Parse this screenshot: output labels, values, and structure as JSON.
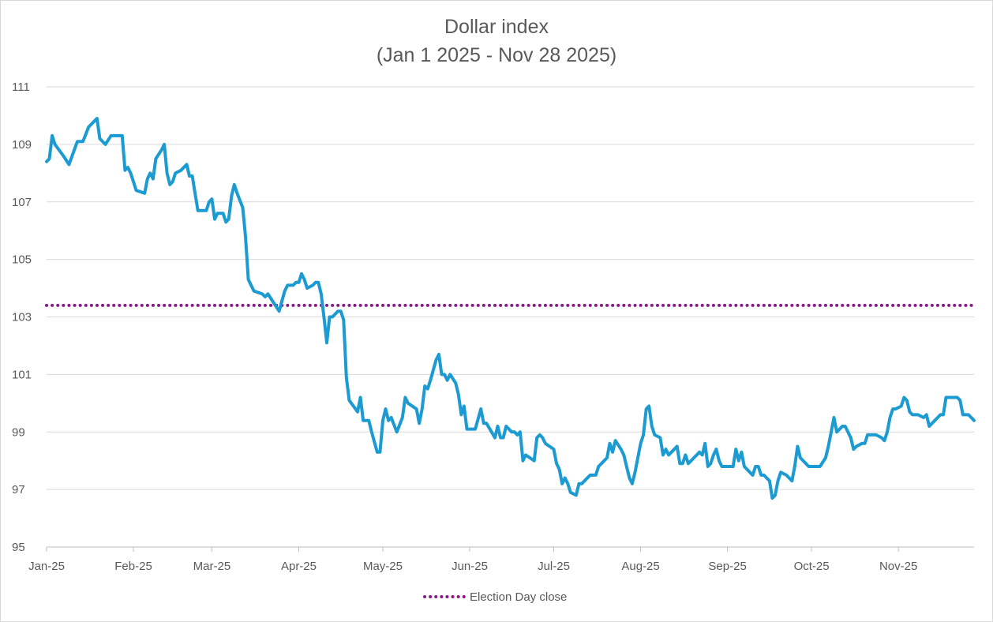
{
  "chart_data": {
    "type": "line",
    "title": "Dollar index",
    "subtitle": "(Jan 1 2025 - Nov 28 2025)",
    "xlabel": "",
    "ylabel": "",
    "x_tick_labels": [
      "Jan-25",
      "Feb-25",
      "Mar-25",
      "Apr-25",
      "May-25",
      "Jun-25",
      "Jul-25",
      "Aug-25",
      "Sep-25",
      "Oct-25",
      "Nov-25"
    ],
    "x_ticks": [
      "2025-01-01",
      "2025-02-01",
      "2025-03-01",
      "2025-04-01",
      "2025-05-01",
      "2025-06-01",
      "2025-07-01",
      "2025-08-01",
      "2025-09-01",
      "2025-10-01",
      "2025-11-01"
    ],
    "xlim": [
      "2025-01-01",
      "2025-11-28"
    ],
    "y_tick_labels": [
      "95",
      "97",
      "99",
      "101",
      "103",
      "105",
      "107",
      "109",
      "111"
    ],
    "ylim": [
      95,
      111
    ],
    "grid": "horizontal",
    "legend_position": "bottom",
    "colors": {
      "series": "#1b9bd1",
      "election": "#8b1a8b",
      "grid": "#d9d9d9",
      "axis": "#bfbfbf",
      "text": "#595959"
    },
    "series": [
      {
        "values": [
          [
            "2025-01-01",
            108.4
          ],
          [
            "2025-01-02",
            108.5
          ],
          [
            "2025-01-03",
            109.3
          ],
          [
            "2025-01-04",
            109.0
          ],
          [
            "2025-01-07",
            108.6
          ],
          [
            "2025-01-09",
            108.3
          ],
          [
            "2025-01-12",
            109.1
          ],
          [
            "2025-01-14",
            109.1
          ],
          [
            "2025-01-16",
            109.6
          ],
          [
            "2025-01-18",
            109.8
          ],
          [
            "2025-01-19",
            109.9
          ],
          [
            "2025-01-20",
            109.2
          ],
          [
            "2025-01-22",
            109.0
          ],
          [
            "2025-01-24",
            109.3
          ],
          [
            "2025-01-26",
            109.3
          ],
          [
            "2025-01-28",
            109.3
          ],
          [
            "2025-01-29",
            108.1
          ],
          [
            "2025-01-30",
            108.2
          ],
          [
            "2025-01-31",
            108.0
          ],
          [
            "2025-02-02",
            107.4
          ],
          [
            "2025-02-05",
            107.3
          ],
          [
            "2025-02-06",
            107.8
          ],
          [
            "2025-02-07",
            108.0
          ],
          [
            "2025-02-08",
            107.8
          ],
          [
            "2025-02-09",
            108.5
          ],
          [
            "2025-02-11",
            108.8
          ],
          [
            "2025-02-12",
            109.0
          ],
          [
            "2025-02-13",
            108.0
          ],
          [
            "2025-02-14",
            107.6
          ],
          [
            "2025-02-15",
            107.7
          ],
          [
            "2025-02-16",
            108.0
          ],
          [
            "2025-02-18",
            108.1
          ],
          [
            "2025-02-20",
            108.3
          ],
          [
            "2025-02-21",
            107.9
          ],
          [
            "2025-02-22",
            107.9
          ],
          [
            "2025-02-23",
            107.3
          ],
          [
            "2025-02-24",
            106.7
          ],
          [
            "2025-02-27",
            106.7
          ],
          [
            "2025-02-28",
            107.0
          ],
          [
            "2025-03-01",
            107.1
          ],
          [
            "2025-03-02",
            106.4
          ],
          [
            "2025-03-03",
            106.6
          ],
          [
            "2025-03-05",
            106.6
          ],
          [
            "2025-03-06",
            106.3
          ],
          [
            "2025-03-07",
            106.4
          ],
          [
            "2025-03-08",
            107.2
          ],
          [
            "2025-03-09",
            107.6
          ],
          [
            "2025-03-10",
            107.3
          ],
          [
            "2025-03-12",
            106.8
          ],
          [
            "2025-03-13",
            105.8
          ],
          [
            "2025-03-14",
            104.3
          ],
          [
            "2025-03-15",
            104.1
          ],
          [
            "2025-03-16",
            103.9
          ],
          [
            "2025-03-19",
            103.8
          ],
          [
            "2025-03-20",
            103.7
          ],
          [
            "2025-03-21",
            103.8
          ],
          [
            "2025-03-23",
            103.5
          ],
          [
            "2025-03-25",
            103.2
          ],
          [
            "2025-03-27",
            103.9
          ],
          [
            "2025-03-28",
            104.1
          ],
          [
            "2025-03-30",
            104.1
          ],
          [
            "2025-03-31",
            104.2
          ],
          [
            "2025-04-01",
            104.2
          ],
          [
            "2025-04-02",
            104.5
          ],
          [
            "2025-04-03",
            104.3
          ],
          [
            "2025-04-04",
            104.0
          ],
          [
            "2025-04-06",
            104.1
          ],
          [
            "2025-04-07",
            104.2
          ],
          [
            "2025-04-08",
            104.2
          ],
          [
            "2025-04-09",
            103.8
          ],
          [
            "2025-04-10",
            103.0
          ],
          [
            "2025-04-11",
            102.1
          ],
          [
            "2025-04-12",
            103.0
          ],
          [
            "2025-04-13",
            103.0
          ],
          [
            "2025-04-15",
            103.2
          ],
          [
            "2025-04-16",
            103.2
          ],
          [
            "2025-04-17",
            102.9
          ],
          [
            "2025-04-18",
            100.9
          ],
          [
            "2025-04-19",
            100.1
          ],
          [
            "2025-04-22",
            99.7
          ],
          [
            "2025-04-23",
            100.2
          ],
          [
            "2025-04-24",
            99.4
          ],
          [
            "2025-04-26",
            99.4
          ],
          [
            "2025-04-27",
            99.0
          ],
          [
            "2025-04-29",
            98.3
          ],
          [
            "2025-04-30",
            98.3
          ],
          [
            "2025-05-01",
            99.4
          ],
          [
            "2025-05-02",
            99.8
          ],
          [
            "2025-05-03",
            99.4
          ],
          [
            "2025-05-04",
            99.5
          ],
          [
            "2025-05-06",
            99.0
          ],
          [
            "2025-05-08",
            99.5
          ],
          [
            "2025-05-09",
            100.2
          ],
          [
            "2025-05-10",
            100.0
          ],
          [
            "2025-05-13",
            99.8
          ],
          [
            "2025-05-14",
            99.3
          ],
          [
            "2025-05-15",
            99.8
          ],
          [
            "2025-05-16",
            100.6
          ],
          [
            "2025-05-17",
            100.5
          ],
          [
            "2025-05-18",
            100.8
          ],
          [
            "2025-05-20",
            101.5
          ],
          [
            "2025-05-21",
            101.7
          ],
          [
            "2025-05-22",
            101.0
          ],
          [
            "2025-05-23",
            101.0
          ],
          [
            "2025-05-24",
            100.8
          ],
          [
            "2025-05-25",
            101.0
          ],
          [
            "2025-05-27",
            100.7
          ],
          [
            "2025-05-28",
            100.3
          ],
          [
            "2025-05-29",
            99.6
          ],
          [
            "2025-05-30",
            99.9
          ],
          [
            "2025-05-31",
            99.1
          ],
          [
            "2025-06-03",
            99.1
          ],
          [
            "2025-06-05",
            99.8
          ],
          [
            "2025-06-06",
            99.3
          ],
          [
            "2025-06-07",
            99.3
          ],
          [
            "2025-06-10",
            98.8
          ],
          [
            "2025-06-11",
            99.2
          ],
          [
            "2025-06-12",
            98.8
          ],
          [
            "2025-06-13",
            98.8
          ],
          [
            "2025-06-14",
            99.2
          ],
          [
            "2025-06-16",
            99.0
          ],
          [
            "2025-06-17",
            99.0
          ],
          [
            "2025-06-18",
            98.9
          ],
          [
            "2025-06-19",
            99.0
          ],
          [
            "2025-06-20",
            98.0
          ],
          [
            "2025-06-21",
            98.2
          ],
          [
            "2025-06-24",
            98.0
          ],
          [
            "2025-06-25",
            98.8
          ],
          [
            "2025-06-26",
            98.9
          ],
          [
            "2025-06-27",
            98.8
          ],
          [
            "2025-06-28",
            98.6
          ],
          [
            "2025-07-01",
            98.4
          ],
          [
            "2025-07-02",
            97.9
          ],
          [
            "2025-07-03",
            97.7
          ],
          [
            "2025-07-04",
            97.2
          ],
          [
            "2025-07-05",
            97.4
          ],
          [
            "2025-07-06",
            97.2
          ],
          [
            "2025-07-07",
            96.9
          ],
          [
            "2025-07-09",
            96.8
          ],
          [
            "2025-07-10",
            97.2
          ],
          [
            "2025-07-11",
            97.2
          ],
          [
            "2025-07-13",
            97.4
          ],
          [
            "2025-07-14",
            97.5
          ],
          [
            "2025-07-16",
            97.5
          ],
          [
            "2025-07-17",
            97.8
          ],
          [
            "2025-07-19",
            98.0
          ],
          [
            "2025-07-20",
            98.1
          ],
          [
            "2025-07-21",
            98.6
          ],
          [
            "2025-07-22",
            98.3
          ],
          [
            "2025-07-23",
            98.7
          ],
          [
            "2025-07-25",
            98.4
          ],
          [
            "2025-07-26",
            98.2
          ],
          [
            "2025-07-27",
            97.8
          ],
          [
            "2025-07-28",
            97.4
          ],
          [
            "2025-07-29",
            97.2
          ],
          [
            "2025-07-30",
            97.6
          ],
          [
            "2025-08-01",
            98.6
          ],
          [
            "2025-08-02",
            98.9
          ],
          [
            "2025-08-03",
            99.8
          ],
          [
            "2025-08-04",
            99.9
          ],
          [
            "2025-08-05",
            99.2
          ],
          [
            "2025-08-06",
            98.9
          ],
          [
            "2025-08-08",
            98.8
          ],
          [
            "2025-08-09",
            98.2
          ],
          [
            "2025-08-10",
            98.4
          ],
          [
            "2025-08-11",
            98.2
          ],
          [
            "2025-08-12",
            98.3
          ],
          [
            "2025-08-14",
            98.5
          ],
          [
            "2025-08-15",
            97.9
          ],
          [
            "2025-08-16",
            97.9
          ],
          [
            "2025-08-17",
            98.2
          ],
          [
            "2025-08-18",
            97.9
          ],
          [
            "2025-08-19",
            98.0
          ],
          [
            "2025-08-20",
            98.1
          ],
          [
            "2025-08-21",
            98.2
          ],
          [
            "2025-08-22",
            98.3
          ],
          [
            "2025-08-23",
            98.2
          ],
          [
            "2025-08-24",
            98.6
          ],
          [
            "2025-08-25",
            97.8
          ],
          [
            "2025-08-26",
            97.9
          ],
          [
            "2025-08-27",
            98.2
          ],
          [
            "2025-08-28",
            98.4
          ],
          [
            "2025-08-29",
            98.0
          ],
          [
            "2025-08-30",
            97.8
          ],
          [
            "2025-09-01",
            97.8
          ],
          [
            "2025-09-02",
            97.8
          ],
          [
            "2025-09-03",
            97.8
          ],
          [
            "2025-09-04",
            98.4
          ],
          [
            "2025-09-05",
            98.0
          ],
          [
            "2025-09-06",
            98.3
          ],
          [
            "2025-09-07",
            97.8
          ],
          [
            "2025-09-09",
            97.6
          ],
          [
            "2025-09-10",
            97.5
          ],
          [
            "2025-09-11",
            97.8
          ],
          [
            "2025-09-12",
            97.8
          ],
          [
            "2025-09-13",
            97.5
          ],
          [
            "2025-09-14",
            97.5
          ],
          [
            "2025-09-16",
            97.3
          ],
          [
            "2025-09-17",
            96.7
          ],
          [
            "2025-09-18",
            96.8
          ],
          [
            "2025-09-19",
            97.3
          ],
          [
            "2025-09-20",
            97.6
          ],
          [
            "2025-09-22",
            97.5
          ],
          [
            "2025-09-24",
            97.3
          ],
          [
            "2025-09-25",
            97.8
          ],
          [
            "2025-09-26",
            98.5
          ],
          [
            "2025-09-27",
            98.1
          ],
          [
            "2025-09-29",
            97.9
          ],
          [
            "2025-09-30",
            97.8
          ],
          [
            "2025-10-01",
            97.8
          ],
          [
            "2025-10-02",
            97.8
          ],
          [
            "2025-10-04",
            97.8
          ],
          [
            "2025-10-06",
            98.1
          ],
          [
            "2025-10-07",
            98.5
          ],
          [
            "2025-10-08",
            99.0
          ],
          [
            "2025-10-09",
            99.5
          ],
          [
            "2025-10-10",
            99.0
          ],
          [
            "2025-10-12",
            99.2
          ],
          [
            "2025-10-13",
            99.2
          ],
          [
            "2025-10-15",
            98.8
          ],
          [
            "2025-10-16",
            98.4
          ],
          [
            "2025-10-17",
            98.5
          ],
          [
            "2025-10-19",
            98.6
          ],
          [
            "2025-10-20",
            98.6
          ],
          [
            "2025-10-21",
            98.9
          ],
          [
            "2025-10-22",
            98.9
          ],
          [
            "2025-10-24",
            98.9
          ],
          [
            "2025-10-26",
            98.8
          ],
          [
            "2025-10-27",
            98.7
          ],
          [
            "2025-10-28",
            99.0
          ],
          [
            "2025-10-29",
            99.5
          ],
          [
            "2025-10-30",
            99.8
          ],
          [
            "2025-10-31",
            99.8
          ],
          [
            "2025-11-02",
            99.9
          ],
          [
            "2025-11-03",
            100.2
          ],
          [
            "2025-11-04",
            100.1
          ],
          [
            "2025-11-05",
            99.7
          ],
          [
            "2025-11-06",
            99.6
          ],
          [
            "2025-11-08",
            99.6
          ],
          [
            "2025-11-10",
            99.5
          ],
          [
            "2025-11-11",
            99.6
          ],
          [
            "2025-11-12",
            99.2
          ],
          [
            "2025-11-14",
            99.4
          ],
          [
            "2025-11-15",
            99.5
          ],
          [
            "2025-11-16",
            99.6
          ],
          [
            "2025-11-17",
            99.6
          ],
          [
            "2025-11-18",
            100.2
          ],
          [
            "2025-11-19",
            100.2
          ],
          [
            "2025-11-22",
            100.2
          ],
          [
            "2025-11-23",
            100.1
          ],
          [
            "2025-11-24",
            99.6
          ],
          [
            "2025-11-26",
            99.6
          ],
          [
            "2025-11-27",
            99.5
          ],
          [
            "2025-11-28",
            99.4
          ]
        ]
      }
    ],
    "reference_line": {
      "name": "Election Day close",
      "value": 103.4,
      "style": "dotted"
    }
  }
}
